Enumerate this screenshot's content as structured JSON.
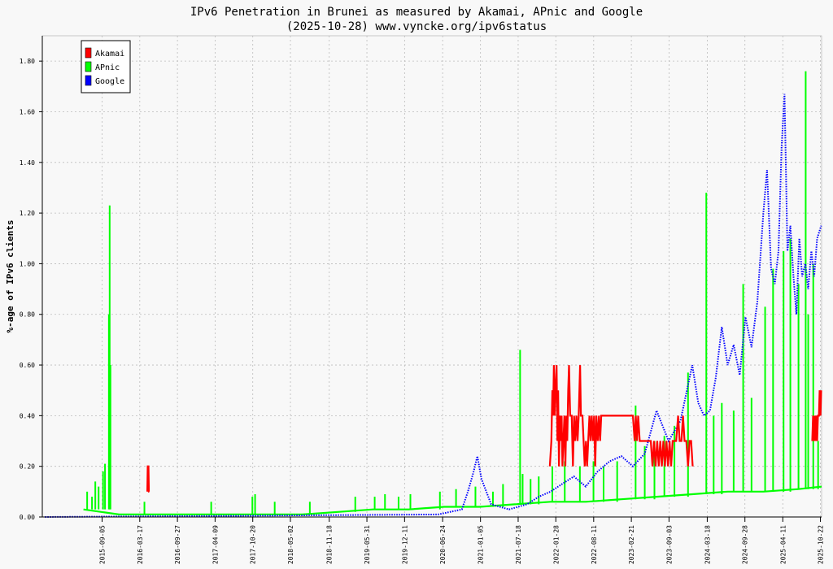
{
  "chart_data": {
    "type": "line",
    "title": "IPv6 Penetration in Brunei as measured by Akamai, APnic and Google",
    "subtitle": "(2025-10-28) www.vyncke.org/ipv6status",
    "ylabel": "%-age of IPv6 clients",
    "xlabel": "",
    "ylim": [
      0,
      1.9
    ],
    "xlim": [
      "2014-11-01",
      "2025-10-28"
    ],
    "grid": true,
    "legend_position": "top-left",
    "x_ticks": [
      "2015-09-05",
      "2016-03-17",
      "2016-09-27",
      "2017-04-09",
      "2017-10-20",
      "2018-05-02",
      "2018-11-18",
      "2019-05-31",
      "2019-12-11",
      "2020-06-24",
      "2021-01-05",
      "2021-07-18",
      "2022-01-28",
      "2022-08-11",
      "2023-02-21",
      "2023-09-03",
      "2024-03-18",
      "2024-09-28",
      "2025-04-11",
      "2025-10-22"
    ],
    "y_ticks": [
      "0.00",
      "0.20",
      "0.40",
      "0.60",
      "0.80",
      "1.00",
      "1.20",
      "1.40",
      "1.60",
      "1.80"
    ],
    "y_tick_values": [
      0,
      0.2,
      0.4,
      0.6,
      0.8,
      1.0,
      1.2,
      1.4,
      1.6,
      1.8
    ],
    "series": [
      {
        "name": "Akamai",
        "color": "#ff0000",
        "style": "solid",
        "points": [
          [
            "2016-04-25",
            0.1
          ],
          [
            "2016-04-27",
            0.2
          ],
          [
            "2016-05-01",
            0.2
          ],
          [
            "2016-05-03",
            0.1
          ],
          [
            "2016-05-05",
            0.1
          ],
          [
            "2021-12-28",
            0.2
          ],
          [
            "2022-01-05",
            0.3
          ],
          [
            "2022-01-10",
            0.5
          ],
          [
            "2022-01-14",
            0.4
          ],
          [
            "2022-01-18",
            0.6
          ],
          [
            "2022-01-22",
            0.4
          ],
          [
            "2022-01-26",
            0.5
          ],
          [
            "2022-02-01",
            0.6
          ],
          [
            "2022-02-05",
            0.3
          ],
          [
            "2022-02-09",
            0.5
          ],
          [
            "2022-02-13",
            0.2
          ],
          [
            "2022-02-18",
            0.4
          ],
          [
            "2022-02-22",
            0.3
          ],
          [
            "2022-02-27",
            0.4
          ],
          [
            "2022-03-03",
            0.2
          ],
          [
            "2022-03-08",
            0.3
          ],
          [
            "2022-03-13",
            0.4
          ],
          [
            "2022-03-18",
            0.2
          ],
          [
            "2022-03-23",
            0.4
          ],
          [
            "2022-03-28",
            0.3
          ],
          [
            "2022-04-02",
            0.5
          ],
          [
            "2022-04-06",
            0.6
          ],
          [
            "2022-04-12",
            0.4
          ],
          [
            "2022-04-20",
            0.4
          ],
          [
            "2022-04-26",
            0.2
          ],
          [
            "2022-05-02",
            0.4
          ],
          [
            "2022-05-08",
            0.3
          ],
          [
            "2022-05-14",
            0.4
          ],
          [
            "2022-05-20",
            0.3
          ],
          [
            "2022-05-26",
            0.4
          ],
          [
            "2022-06-02",
            0.6
          ],
          [
            "2022-06-06",
            0.4
          ],
          [
            "2022-06-14",
            0.4
          ],
          [
            "2022-06-20",
            0.3
          ],
          [
            "2022-06-26",
            0.2
          ],
          [
            "2022-07-02",
            0.3
          ],
          [
            "2022-07-08",
            0.2
          ],
          [
            "2022-07-14",
            0.3
          ],
          [
            "2022-07-20",
            0.4
          ],
          [
            "2022-07-26",
            0.3
          ],
          [
            "2022-08-01",
            0.4
          ],
          [
            "2022-08-07",
            0.3
          ],
          [
            "2022-08-13",
            0.4
          ],
          [
            "2022-08-19",
            0.2
          ],
          [
            "2022-08-25",
            0.4
          ],
          [
            "2022-09-01",
            0.3
          ],
          [
            "2022-09-07",
            0.4
          ],
          [
            "2022-09-13",
            0.3
          ],
          [
            "2022-09-19",
            0.4
          ],
          [
            "2022-10-01",
            0.4
          ],
          [
            "2022-10-20",
            0.4
          ],
          [
            "2023-01-01",
            0.4
          ],
          [
            "2023-02-01",
            0.4
          ],
          [
            "2023-03-01",
            0.4
          ],
          [
            "2023-03-10",
            0.3
          ],
          [
            "2023-03-16",
            0.4
          ],
          [
            "2023-03-22",
            0.3
          ],
          [
            "2023-03-28",
            0.4
          ],
          [
            "2023-04-05",
            0.3
          ],
          [
            "2023-06-01",
            0.3
          ],
          [
            "2023-06-10",
            0.2
          ],
          [
            "2023-06-18",
            0.3
          ],
          [
            "2023-06-26",
            0.2
          ],
          [
            "2023-07-04",
            0.3
          ],
          [
            "2023-07-12",
            0.2
          ],
          [
            "2023-07-20",
            0.3
          ],
          [
            "2023-07-28",
            0.2
          ],
          [
            "2023-08-05",
            0.3
          ],
          [
            "2023-08-13",
            0.2
          ],
          [
            "2023-08-21",
            0.3
          ],
          [
            "2023-08-29",
            0.2
          ],
          [
            "2023-09-06",
            0.3
          ],
          [
            "2023-09-14",
            0.2
          ],
          [
            "2023-09-22",
            0.3
          ],
          [
            "2023-10-01",
            0.3
          ],
          [
            "2023-10-10",
            0.3
          ],
          [
            "2023-10-20",
            0.4
          ],
          [
            "2023-10-28",
            0.3
          ],
          [
            "2023-11-06",
            0.3
          ],
          [
            "2023-11-14",
            0.4
          ],
          [
            "2023-11-22",
            0.3
          ],
          [
            "2023-12-01",
            0.3
          ],
          [
            "2023-12-10",
            0.2
          ],
          [
            "2023-12-18",
            0.3
          ],
          [
            "2023-12-26",
            0.3
          ],
          [
            "2024-01-03",
            0.2
          ],
          [
            "2025-09-10",
            0.3
          ],
          [
            "2025-09-14",
            0.4
          ],
          [
            "2025-09-18",
            0.3
          ],
          [
            "2025-09-22",
            0.4
          ],
          [
            "2025-09-26",
            0.3
          ],
          [
            "2025-10-01",
            0.4
          ],
          [
            "2025-10-05",
            0.3
          ],
          [
            "2025-10-09",
            0.4
          ],
          [
            "2025-10-14",
            0.4
          ],
          [
            "2025-10-18",
            0.5
          ],
          [
            "2025-10-22",
            0.4
          ],
          [
            "2025-10-26",
            0.5
          ]
        ]
      },
      {
        "name": "APnic",
        "color": "#00ff00",
        "style": "solid",
        "spikes": [
          [
            "2015-06-20",
            0.1
          ],
          [
            "2015-07-15",
            0.08
          ],
          [
            "2015-08-01",
            0.14
          ],
          [
            "2015-08-18",
            0.12
          ],
          [
            "2015-09-10",
            0.18
          ],
          [
            "2015-09-20",
            0.21
          ],
          [
            "2015-10-10",
            0.8
          ],
          [
            "2015-10-14",
            1.23
          ],
          [
            "2015-10-18",
            0.6
          ],
          [
            "2016-04-10",
            0.06
          ],
          [
            "2017-03-20",
            0.06
          ],
          [
            "2017-10-18",
            0.08
          ],
          [
            "2017-11-01",
            0.09
          ],
          [
            "2018-02-10",
            0.06
          ],
          [
            "2018-08-10",
            0.06
          ],
          [
            "2019-04-01",
            0.08
          ],
          [
            "2019-07-10",
            0.08
          ],
          [
            "2019-09-01",
            0.09
          ],
          [
            "2019-11-10",
            0.08
          ],
          [
            "2020-01-10",
            0.09
          ],
          [
            "2020-06-10",
            0.1
          ],
          [
            "2020-09-01",
            0.11
          ],
          [
            "2020-12-10",
            0.12
          ],
          [
            "2021-03-10",
            0.1
          ],
          [
            "2021-05-01",
            0.13
          ],
          [
            "2021-07-28",
            0.66
          ],
          [
            "2021-08-10",
            0.17
          ],
          [
            "2021-09-20",
            0.15
          ],
          [
            "2021-11-01",
            0.16
          ],
          [
            "2022-01-10",
            0.2
          ],
          [
            "2022-03-15",
            0.22
          ],
          [
            "2022-06-01",
            0.2
          ],
          [
            "2022-08-10",
            0.22
          ],
          [
            "2022-10-01",
            0.2
          ],
          [
            "2022-12-10",
            0.22
          ],
          [
            "2023-03-15",
            0.44
          ],
          [
            "2023-05-01",
            0.28
          ],
          [
            "2023-06-20",
            0.3
          ],
          [
            "2023-08-10",
            0.32
          ],
          [
            "2023-10-01",
            0.36
          ],
          [
            "2023-12-10",
            0.57
          ],
          [
            "2024-03-13",
            1.28
          ],
          [
            "2024-04-20",
            0.4
          ],
          [
            "2024-06-01",
            0.45
          ],
          [
            "2024-08-01",
            0.42
          ],
          [
            "2024-09-19",
            0.92
          ],
          [
            "2024-11-01",
            0.47
          ],
          [
            "2025-01-10",
            0.83
          ],
          [
            "2025-02-20",
            0.98
          ],
          [
            "2025-04-15",
            1.05
          ],
          [
            "2025-05-20",
            1.1
          ],
          [
            "2025-07-01",
            0.92
          ],
          [
            "2025-08-07",
            1.76
          ],
          [
            "2025-08-20",
            0.8
          ],
          [
            "2025-09-15",
            1.0
          ],
          [
            "2025-10-10",
            0.3
          ]
        ],
        "baseline": [
          [
            "2015-06-01",
            0.03
          ],
          [
            "2015-12-01",
            0.01
          ],
          [
            "2016-06-01",
            0.01
          ],
          [
            "2017-01-01",
            0.01
          ],
          [
            "2017-07-01",
            0.01
          ],
          [
            "2018-01-01",
            0.01
          ],
          [
            "2018-07-01",
            0.01
          ],
          [
            "2019-01-01",
            0.02
          ],
          [
            "2019-07-01",
            0.03
          ],
          [
            "2020-01-01",
            0.03
          ],
          [
            "2020-07-01",
            0.04
          ],
          [
            "2021-01-01",
            0.04
          ],
          [
            "2021-07-01",
            0.05
          ],
          [
            "2022-01-01",
            0.06
          ],
          [
            "2022-07-01",
            0.06
          ],
          [
            "2023-01-01",
            0.07
          ],
          [
            "2023-07-01",
            0.08
          ],
          [
            "2024-01-01",
            0.09
          ],
          [
            "2024-07-01",
            0.1
          ],
          [
            "2025-01-01",
            0.1
          ],
          [
            "2025-07-01",
            0.11
          ],
          [
            "2025-10-28",
            0.12
          ]
        ]
      },
      {
        "name": "Google",
        "color": "#0000ff",
        "style": "dotted",
        "points": [
          [
            "2014-11-15",
            0.0
          ],
          [
            "2020-06-01",
            0.01
          ],
          [
            "2020-10-01",
            0.03
          ],
          [
            "2020-11-01",
            0.1
          ],
          [
            "2020-12-01",
            0.18
          ],
          [
            "2020-12-20",
            0.24
          ],
          [
            "2021-01-10",
            0.15
          ],
          [
            "2021-03-01",
            0.05
          ],
          [
            "2021-06-01",
            0.03
          ],
          [
            "2021-09-01",
            0.05
          ],
          [
            "2021-11-01",
            0.08
          ],
          [
            "2022-01-01",
            0.1
          ],
          [
            "2022-03-01",
            0.13
          ],
          [
            "2022-05-01",
            0.16
          ],
          [
            "2022-07-01",
            0.12
          ],
          [
            "2022-09-01",
            0.18
          ],
          [
            "2022-11-01",
            0.22
          ],
          [
            "2023-01-01",
            0.24
          ],
          [
            "2023-03-01",
            0.2
          ],
          [
            "2023-05-01",
            0.25
          ],
          [
            "2023-07-01",
            0.42
          ],
          [
            "2023-09-01",
            0.3
          ],
          [
            "2023-11-01",
            0.38
          ],
          [
            "2024-01-01",
            0.6
          ],
          [
            "2024-02-01",
            0.45
          ],
          [
            "2024-03-01",
            0.4
          ],
          [
            "2024-04-01",
            0.42
          ],
          [
            "2024-05-01",
            0.55
          ],
          [
            "2024-06-01",
            0.75
          ],
          [
            "2024-07-01",
            0.6
          ],
          [
            "2024-08-01",
            0.68
          ],
          [
            "2024-09-01",
            0.56
          ],
          [
            "2024-10-01",
            0.79
          ],
          [
            "2024-11-01",
            0.67
          ],
          [
            "2024-12-01",
            0.85
          ],
          [
            "2025-01-01",
            1.2
          ],
          [
            "2025-01-20",
            1.37
          ],
          [
            "2025-02-10",
            0.98
          ],
          [
            "2025-03-01",
            0.92
          ],
          [
            "2025-03-20",
            1.05
          ],
          [
            "2025-04-05",
            1.46
          ],
          [
            "2025-04-20",
            1.67
          ],
          [
            "2025-05-05",
            1.05
          ],
          [
            "2025-05-20",
            1.15
          ],
          [
            "2025-06-05",
            0.95
          ],
          [
            "2025-06-20",
            0.8
          ],
          [
            "2025-07-05",
            1.1
          ],
          [
            "2025-07-20",
            0.95
          ],
          [
            "2025-08-05",
            1.0
          ],
          [
            "2025-08-20",
            0.9
          ],
          [
            "2025-09-05",
            1.05
          ],
          [
            "2025-09-20",
            0.95
          ],
          [
            "2025-10-05",
            1.1
          ],
          [
            "2025-10-26",
            1.15
          ]
        ]
      }
    ]
  }
}
